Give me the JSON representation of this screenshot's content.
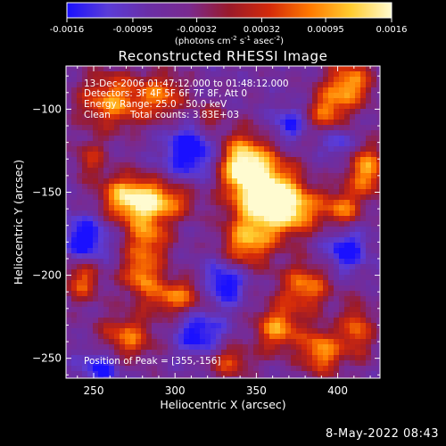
{
  "colorbar": {
    "ticks": [
      "-0.0016",
      "-0.00095",
      "-0.00032",
      "0.00032",
      "0.00095",
      "0.0016"
    ],
    "tick_values": [
      -0.0016,
      -0.00095,
      -0.00032,
      0.00032,
      0.00095,
      0.0016
    ],
    "range": [
      -0.0016,
      0.0016
    ],
    "units_prefix": "(photons cm",
    "units_exp1": "-2",
    "units_mid1": " s",
    "units_exp2": "-1",
    "units_mid2": " asec",
    "units_exp3": "-2",
    "units_suffix": ")",
    "colors": [
      "#1a10ff",
      "#5a3cd8",
      "#6a2ea6",
      "#7a2a90",
      "#9a1a2a",
      "#d42a0a",
      "#ff7a00",
      "#ffcc30",
      "#fffbd0"
    ]
  },
  "annotations": {
    "time_range": "13-Dec-2006 01:47:12.000 to 01:48:12.000",
    "detectors": "Detectors: 3F 4F 5F 6F 7F 8F, Att 0",
    "energy": "Energy Range: 25.0 - 50.0 keV",
    "method": "Clean",
    "counts": "Total counts: 3.83E+03",
    "peak": "Position of Peak = [355,-156]"
  },
  "footer": {
    "timestamp": "8-May-2022 08:43"
  },
  "chart_data": {
    "type": "heatmap",
    "title": "Reconstructed RHESSI Image",
    "xlabel": "Heliocentric X (arcsec)",
    "ylabel": "Heliocentric Y (arcsec)",
    "xlim": [
      233,
      426
    ],
    "ylim": [
      -262,
      -74
    ],
    "x_ticks": [
      250,
      300,
      350,
      400
    ],
    "y_ticks": [
      -100,
      -150,
      -200,
      -250
    ],
    "x_tick_labels": [
      "250",
      "300",
      "350",
      "400"
    ],
    "y_tick_labels": [
      "−100",
      "−150",
      "−200",
      "−250"
    ],
    "peak": [
      355,
      -156
    ],
    "blobs": [
      {
        "x": 355,
        "y": -152,
        "sx": 14,
        "sy": 18,
        "a": 1.5
      },
      {
        "x": 340,
        "y": -132,
        "sx": 10,
        "sy": 12,
        "a": 1.1
      },
      {
        "x": 375,
        "y": -160,
        "sx": 12,
        "sy": 10,
        "a": 0.9
      },
      {
        "x": 270,
        "y": -153,
        "sx": 12,
        "sy": 10,
        "a": 1.05
      },
      {
        "x": 292,
        "y": -155,
        "sx": 14,
        "sy": 8,
        "a": 0.95
      },
      {
        "x": 283,
        "y": -178,
        "sx": 10,
        "sy": 12,
        "a": 0.9
      },
      {
        "x": 262,
        "y": -95,
        "sx": 15,
        "sy": 12,
        "a": 0.95
      },
      {
        "x": 293,
        "y": -92,
        "sx": 10,
        "sy": 10,
        "a": 0.75
      },
      {
        "x": 407,
        "y": -85,
        "sx": 10,
        "sy": 10,
        "a": 1.05
      },
      {
        "x": 393,
        "y": -102,
        "sx": 8,
        "sy": 9,
        "a": 0.85
      },
      {
        "x": 418,
        "y": -137,
        "sx": 9,
        "sy": 11,
        "a": 1.0
      },
      {
        "x": 403,
        "y": -160,
        "sx": 8,
        "sy": 8,
        "a": 0.8
      },
      {
        "x": 343,
        "y": -182,
        "sx": 10,
        "sy": 10,
        "a": 0.8
      },
      {
        "x": 300,
        "y": -213,
        "sx": 14,
        "sy": 8,
        "a": 0.9
      },
      {
        "x": 278,
        "y": -200,
        "sx": 8,
        "sy": 8,
        "a": 0.75
      },
      {
        "x": 243,
        "y": -203,
        "sx": 8,
        "sy": 9,
        "a": 0.8
      },
      {
        "x": 270,
        "y": -238,
        "sx": 12,
        "sy": 10,
        "a": 0.85
      },
      {
        "x": 380,
        "y": -207,
        "sx": 11,
        "sy": 10,
        "a": 0.9
      },
      {
        "x": 363,
        "y": -232,
        "sx": 10,
        "sy": 10,
        "a": 0.95
      },
      {
        "x": 390,
        "y": -246,
        "sx": 9,
        "sy": 10,
        "a": 1.0
      },
      {
        "x": 412,
        "y": -233,
        "sx": 7,
        "sy": 12,
        "a": 0.8
      },
      {
        "x": 333,
        "y": -252,
        "sx": 10,
        "sy": 7,
        "a": 0.7
      },
      {
        "x": 320,
        "y": -106,
        "sx": 7,
        "sy": 7,
        "a": 0.55
      },
      {
        "x": 248,
        "y": -130,
        "sx": 7,
        "sy": 8,
        "a": 0.55
      }
    ],
    "dips": [
      {
        "x": 310,
        "y": -125,
        "sx": 12,
        "sy": 12,
        "a": 0.8
      },
      {
        "x": 245,
        "y": -178,
        "sx": 10,
        "sy": 10,
        "a": 0.75
      },
      {
        "x": 330,
        "y": -205,
        "sx": 9,
        "sy": 9,
        "a": 0.8
      },
      {
        "x": 405,
        "y": -185,
        "sx": 9,
        "sy": 9,
        "a": 0.7
      },
      {
        "x": 255,
        "y": -255,
        "sx": 9,
        "sy": 8,
        "a": 0.65
      },
      {
        "x": 315,
        "y": -235,
        "sx": 10,
        "sy": 10,
        "a": 0.7
      },
      {
        "x": 370,
        "y": -110,
        "sx": 8,
        "sy": 8,
        "a": 0.6
      },
      {
        "x": 400,
        "y": -120,
        "sx": 7,
        "sy": 7,
        "a": 0.55
      }
    ]
  }
}
